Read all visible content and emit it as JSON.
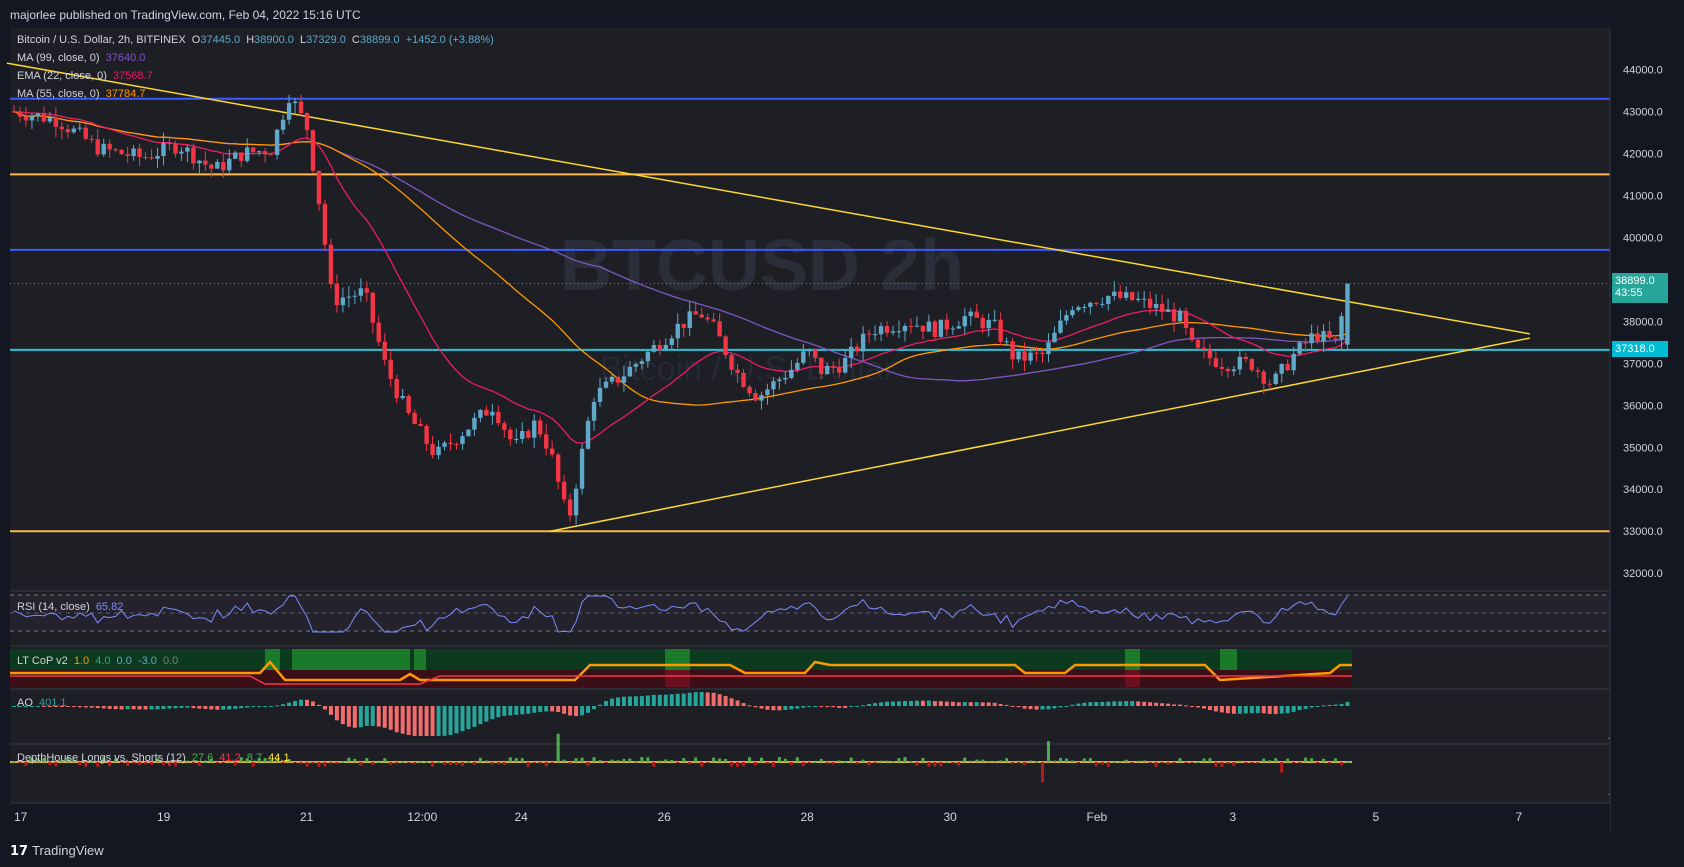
{
  "header": {
    "publisher": "majorlee published on TradingView.com, Feb 04, 2022 15:16 UTC"
  },
  "footer": {
    "brand": "TradingView"
  },
  "symbol": {
    "name": "Bitcoin / U.S. Dollar, 2h, BITFINEX",
    "o_label": "O",
    "o": "37445.0",
    "h_label": "H",
    "h": "38900.0",
    "l_label": "L",
    "l": "37329.0",
    "c_label": "C",
    "c": "38899.0",
    "change": "+1452.0 (+3.88%)"
  },
  "indicators": {
    "ma99": {
      "label": "MA (99, close, 0)",
      "value": "37640.0",
      "color": "#7e57c2"
    },
    "ema22": {
      "label": "EMA (22, close, 0)",
      "value": "37568.7",
      "color": "#e91e63"
    },
    "ma55": {
      "label": "MA (55, close, 0)",
      "value": "37784.7",
      "color": "#ff9800"
    }
  },
  "watermark": {
    "symbol": "BTCUSD",
    "interval": "2h",
    "desc": "Bitcoin / U.S. Dollar"
  },
  "price_tags": {
    "last": {
      "price": "38899.0",
      "countdown": "43:55",
      "color": "#26a69a"
    },
    "level": {
      "price": "37318.0",
      "color": "#00bcd4"
    }
  },
  "colors": {
    "up": "#5fa8c9",
    "down": "#f23645",
    "blue_line": "#3d5afe",
    "orange_line": "#ffb74d",
    "cyan_line": "#26c6da",
    "trend": "#fdd835"
  },
  "chart_data": {
    "type": "candlestick",
    "ylim": [
      31600,
      44700
    ],
    "y_ticks": [
      32000,
      33000,
      34000,
      35000,
      36000,
      37000,
      38000,
      39000,
      40000,
      41000,
      42000,
      43000,
      44000
    ],
    "x_ticks": [
      {
        "label": "17",
        "t": 0
      },
      {
        "label": "19",
        "t": 2
      },
      {
        "label": "21",
        "t": 4
      },
      {
        "label": "12:00",
        "t": 5.5
      },
      {
        "label": "24",
        "t": 7
      },
      {
        "label": "26",
        "t": 9
      },
      {
        "label": "28",
        "t": 11
      },
      {
        "label": "30",
        "t": 13
      },
      {
        "label": "Feb",
        "t": 15
      },
      {
        "label": "3",
        "t": 17
      },
      {
        "label": "5",
        "t": 19
      },
      {
        "label": "7",
        "t": 21
      }
    ],
    "horizontal_levels": [
      {
        "price": 43300,
        "color": "#3d5afe"
      },
      {
        "price": 41500,
        "color": "#ffb74d"
      },
      {
        "price": 39700,
        "color": "#3d5afe"
      },
      {
        "price": 37318,
        "color": "#26c6da"
      },
      {
        "price": 33000,
        "color": "#ffb74d"
      }
    ],
    "trendlines": [
      {
        "from": [
          -0.1,
          44150
        ],
        "to": [
          21.2,
          37700
        ]
      },
      {
        "from": [
          7.5,
          33000
        ],
        "to": [
          21.2,
          37600
        ]
      }
    ],
    "path_points": [
      [
        0,
        43000
      ],
      [
        0.6,
        42800
      ],
      [
        1.2,
        42100
      ],
      [
        1.8,
        41900
      ],
      [
        2.3,
        42200
      ],
      [
        2.8,
        41600
      ],
      [
        3.2,
        42000
      ],
      [
        3.6,
        42100
      ],
      [
        3.85,
        43400
      ],
      [
        4.1,
        42600
      ],
      [
        4.3,
        40500
      ],
      [
        4.45,
        38500
      ],
      [
        4.9,
        38700
      ],
      [
        5.2,
        36900
      ],
      [
        5.5,
        35800
      ],
      [
        5.9,
        34800
      ],
      [
        6.3,
        35400
      ],
      [
        6.7,
        36000
      ],
      [
        7.0,
        35000
      ],
      [
        7.3,
        35600
      ],
      [
        7.5,
        34900
      ],
      [
        7.75,
        33200
      ],
      [
        8.1,
        36200
      ],
      [
        8.5,
        36700
      ],
      [
        8.9,
        37300
      ],
      [
        9.3,
        37900
      ],
      [
        9.6,
        38200
      ],
      [
        9.8,
        37800
      ],
      [
        10.1,
        36800
      ],
      [
        10.4,
        36200
      ],
      [
        10.9,
        36900
      ],
      [
        11.1,
        37300
      ],
      [
        11.3,
        36800
      ],
      [
        11.6,
        37000
      ],
      [
        12.0,
        37800
      ],
      [
        12.5,
        38000
      ],
      [
        12.9,
        37800
      ],
      [
        13.3,
        38100
      ],
      [
        13.7,
        37900
      ],
      [
        14.0,
        37100
      ],
      [
        14.4,
        37200
      ],
      [
        14.8,
        38400
      ],
      [
        15.3,
        38600
      ],
      [
        15.7,
        38500
      ],
      [
        16.0,
        38300
      ],
      [
        16.3,
        38100
      ],
      [
        16.5,
        37300
      ],
      [
        16.9,
        37000
      ],
      [
        17.3,
        37000
      ],
      [
        17.6,
        36500
      ],
      [
        17.9,
        37200
      ],
      [
        18.2,
        37700
      ],
      [
        18.5,
        37450
      ],
      [
        18.65,
        38899
      ]
    ],
    "series": [
      {
        "name": "MA (99, close, 0)",
        "value": 37640.0
      },
      {
        "name": "EMA (22, close, 0)",
        "value": 37568.7
      },
      {
        "name": "MA (55, close, 0)",
        "value": 37784.7
      }
    ],
    "last_price": 38899.0
  },
  "panels": {
    "rsi": {
      "label": "RSI (14, close)",
      "value": "65.82",
      "tick": "40.00"
    },
    "ltcop": {
      "label": "LT CoP v2",
      "v1": "1.0",
      "v2": "4.0",
      "v3": "0.0",
      "v4": "-3.0",
      "v5": "0.0",
      "tick": "0.0"
    },
    "ao": {
      "label": "AO",
      "value": "401.1",
      "tick1": "0.0",
      "tick2": "−4000.0"
    },
    "dh": {
      "label": "DepthHouse Longs vs. Shorts (12)",
      "v1": "27.6",
      "v2": "41.2",
      "v3": "8.7",
      "v4": "44.1",
      "tick1": "0.0",
      "tick2": "−1000.0"
    }
  }
}
